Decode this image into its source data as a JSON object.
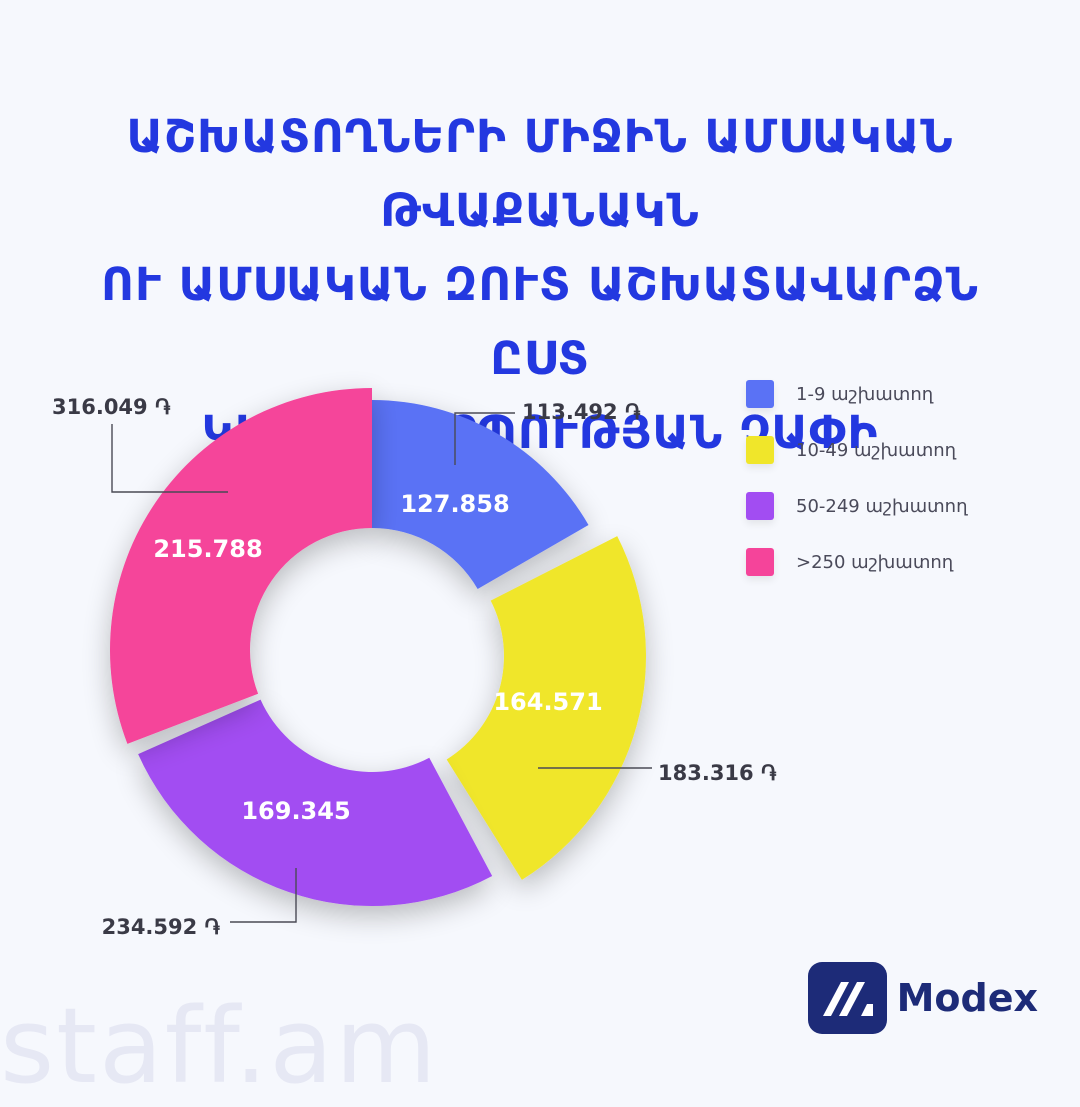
{
  "title_lines": [
    "ԱՇԽԱՏՈՂՆԵՐԻ ՄԻՋԻՆ ԱՄՍԱԿԱՆ ԹՎԱՔԱՆԱԿՆ",
    "ՈՒ ԱՄՍԱԿԱՆ ԶՈՒՏ ԱՇԽԱՏԱՎԱՐՁՆ ԸՍՏ",
    "ԿԱԶՄԱԿԵՐՊՈՒԹՅԱՆ ՉԱՓԻ"
  ],
  "chart_data": {
    "type": "donut",
    "categories": [
      "1-9 աշխատող",
      "10-49 աշխատող",
      "50-249 աշխատող",
      ">250 աշխատող"
    ],
    "series": [
      {
        "values": [
          127.858,
          164.571,
          169.345,
          215.788
        ]
      },
      {
        "values": [
          113.492,
          183.316,
          234.592,
          316.049
        ],
        "value_suffix": " ֏"
      }
    ],
    "colors": [
      "#5a72f5",
      "#f0e62a",
      "#a24df2",
      "#f5449a"
    ],
    "legend_position": "top-right"
  },
  "legend": [
    {
      "label": "1-9 աշխատող",
      "color": "#5a72f5"
    },
    {
      "label": "10-49 աշխատող",
      "color": "#f0e62a"
    },
    {
      "label": "50-249 աշխատող",
      "color": "#a24df2"
    },
    {
      "label": ">250 աշխատող",
      "color": "#f5449a"
    }
  ],
  "logo": {
    "name": "Modex",
    "icon": "modex-logo-icon"
  },
  "watermark": "staff.am"
}
